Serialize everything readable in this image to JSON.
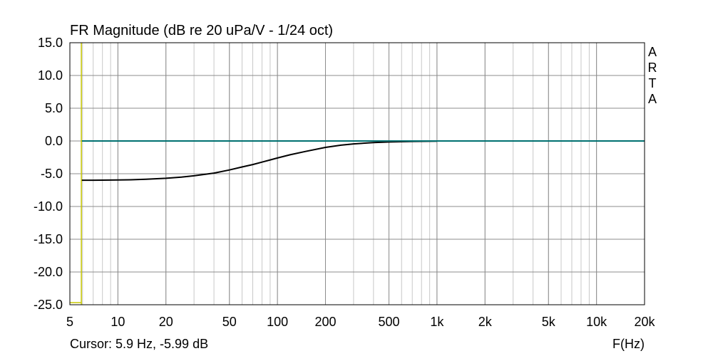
{
  "chart_data": {
    "type": "line",
    "title": "FR Magnitude (dB re 20 uPa/V - 1/24 oct)",
    "xlabel": "F(Hz)",
    "ylabel": "",
    "xscale": "log",
    "xlim": [
      5,
      20000
    ],
    "ylim": [
      -25,
      15
    ],
    "grid": true,
    "x_ticks": [
      {
        "value": 5,
        "label": "5"
      },
      {
        "value": 10,
        "label": "10"
      },
      {
        "value": 20,
        "label": "20"
      },
      {
        "value": 50,
        "label": "50"
      },
      {
        "value": 100,
        "label": "100"
      },
      {
        "value": 200,
        "label": "200"
      },
      {
        "value": 500,
        "label": "500"
      },
      {
        "value": 1000,
        "label": "1k"
      },
      {
        "value": 2000,
        "label": "2k"
      },
      {
        "value": 5000,
        "label": "5k"
      },
      {
        "value": 10000,
        "label": "10k"
      },
      {
        "value": 20000,
        "label": "20k"
      }
    ],
    "y_ticks": [
      {
        "value": 15,
        "label": "15.0"
      },
      {
        "value": 10,
        "label": "10.0"
      },
      {
        "value": 5,
        "label": "5.0"
      },
      {
        "value": 0,
        "label": "0.0"
      },
      {
        "value": -5,
        "label": "-5.0"
      },
      {
        "value": -10,
        "label": "-10.0"
      },
      {
        "value": -15,
        "label": "-15.0"
      },
      {
        "value": -20,
        "label": "-20.0"
      },
      {
        "value": -25,
        "label": "-25.0"
      }
    ],
    "series": [
      {
        "color": "#000000",
        "x": [
          5.9,
          7,
          8,
          10,
          12,
          15,
          20,
          25,
          30,
          40,
          50,
          60,
          70,
          80,
          100,
          120,
          150,
          200,
          250,
          300,
          400,
          500,
          700,
          1000
        ],
        "y": [
          -5.99,
          -5.99,
          -5.98,
          -5.96,
          -5.92,
          -5.85,
          -5.7,
          -5.52,
          -5.32,
          -4.9,
          -4.42,
          -3.97,
          -3.6,
          -3.23,
          -2.6,
          -2.11,
          -1.6,
          -0.98,
          -0.64,
          -0.45,
          -0.24,
          -0.15,
          -0.07,
          -0.02
        ]
      },
      {
        "color": "#007070",
        "x": [
          5.9,
          20000
        ],
        "y": [
          0,
          0
        ]
      }
    ],
    "cursor": {
      "x": 5.9,
      "y": -5.99,
      "color": "#c8c800",
      "label": "Cursor: 5.9 Hz, -5.99 dB"
    },
    "watermark": "ARTA"
  }
}
